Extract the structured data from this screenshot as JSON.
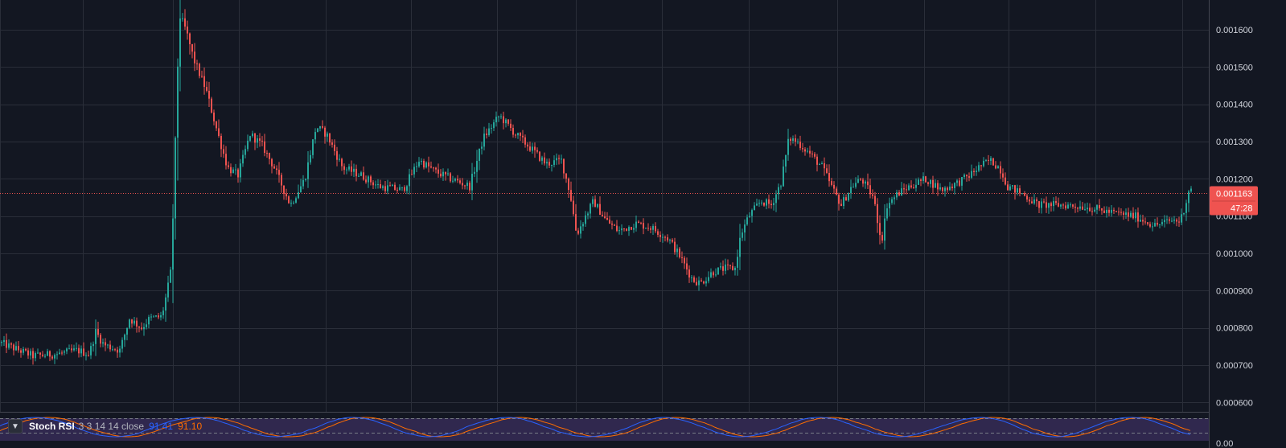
{
  "colors": {
    "background": "#131722",
    "grid": "#2a2e39",
    "up": "#26a69a",
    "down": "#ef5350",
    "price_line": "#ef5350",
    "k_line": "#2962ff",
    "d_line": "#ff6d00",
    "rsi_band": "#7e57c2"
  },
  "price_axis": {
    "ticks": [
      "0.001600",
      "0.001500",
      "0.001400",
      "0.001300",
      "0.001200",
      "0.001100",
      "0.001000",
      "0.000900",
      "0.000800",
      "0.000700",
      "0.000600"
    ],
    "current_price": "0.001163",
    "countdown": "47:28"
  },
  "stoch_rsi": {
    "name": "Stoch RSI",
    "params": "3 3 14 14 close",
    "k_value": "91.41",
    "d_value": "91.10",
    "axis_zero": "0.00"
  },
  "chart_data": {
    "type": "candlestick",
    "ylim": [
      0.000575,
      0.00168
    ],
    "current_price": 0.001163,
    "grid": true,
    "price_path": [
      [
        0,
        0.00076
      ],
      [
        40,
        0.000725
      ],
      [
        70,
        0.00073
      ],
      [
        95,
        0.00074
      ],
      [
        110,
        0.00073
      ],
      [
        118,
        0.00079
      ],
      [
        128,
        0.000755
      ],
      [
        148,
        0.00074
      ],
      [
        160,
        0.000825
      ],
      [
        175,
        0.0008
      ],
      [
        185,
        0.000825
      ],
      [
        200,
        0.00083
      ],
      [
        207,
        0.0009
      ],
      [
        212,
        0.00096
      ],
      [
        217,
        0.0013
      ],
      [
        222,
        0.00164
      ],
      [
        230,
        0.0016
      ],
      [
        240,
        0.00152
      ],
      [
        255,
        0.00144
      ],
      [
        270,
        0.00132
      ],
      [
        282,
        0.00123
      ],
      [
        295,
        0.00121
      ],
      [
        310,
        0.00132
      ],
      [
        325,
        0.00129
      ],
      [
        340,
        0.00123
      ],
      [
        360,
        0.00113
      ],
      [
        378,
        0.0012
      ],
      [
        392,
        0.00134
      ],
      [
        405,
        0.00132
      ],
      [
        425,
        0.00123
      ],
      [
        448,
        0.00121
      ],
      [
        470,
        0.00118
      ],
      [
        500,
        0.00117
      ],
      [
        520,
        0.00125
      ],
      [
        540,
        0.00122
      ],
      [
        560,
        0.0012
      ],
      [
        583,
        0.00118
      ],
      [
        600,
        0.00131
      ],
      [
        620,
        0.00137
      ],
      [
        640,
        0.00132
      ],
      [
        660,
        0.00128
      ],
      [
        678,
        0.00124
      ],
      [
        697,
        0.00125
      ],
      [
        708,
        0.00116
      ],
      [
        716,
        0.00105
      ],
      [
        727,
        0.0011
      ],
      [
        737,
        0.00114
      ],
      [
        752,
        0.00109
      ],
      [
        768,
        0.00106
      ],
      [
        790,
        0.00108
      ],
      [
        808,
        0.00107
      ],
      [
        830,
        0.00104
      ],
      [
        845,
        0.00099
      ],
      [
        860,
        0.00093
      ],
      [
        870,
        0.00092
      ],
      [
        885,
        0.00095
      ],
      [
        900,
        0.00096
      ],
      [
        913,
        0.00096
      ],
      [
        920,
        0.00105
      ],
      [
        930,
        0.0011
      ],
      [
        945,
        0.00114
      ],
      [
        958,
        0.00113
      ],
      [
        970,
        0.00119
      ],
      [
        980,
        0.00131
      ],
      [
        990,
        0.0013
      ],
      [
        1005,
        0.00127
      ],
      [
        1022,
        0.00123
      ],
      [
        1035,
        0.00117
      ],
      [
        1045,
        0.00113
      ],
      [
        1058,
        0.00118
      ],
      [
        1070,
        0.0012
      ],
      [
        1085,
        0.00115
      ],
      [
        1095,
        0.00103
      ],
      [
        1102,
        0.00113
      ],
      [
        1115,
        0.00116
      ],
      [
        1130,
        0.00118
      ],
      [
        1150,
        0.0012
      ],
      [
        1170,
        0.00117
      ],
      [
        1190,
        0.00119
      ],
      [
        1205,
        0.00121
      ],
      [
        1215,
        0.00123
      ],
      [
        1230,
        0.00125
      ],
      [
        1242,
        0.00123
      ],
      [
        1252,
        0.00118
      ],
      [
        1270,
        0.00116
      ],
      [
        1290,
        0.00113
      ],
      [
        1320,
        0.00113
      ],
      [
        1350,
        0.001125
      ],
      [
        1380,
        0.00111
      ],
      [
        1410,
        0.0011
      ],
      [
        1435,
        0.001075
      ],
      [
        1458,
        0.00109
      ],
      [
        1466,
        0.001085
      ],
      [
        1474,
        0.00114
      ],
      [
        1478,
        0.00118
      ],
      [
        1482,
        0.001163
      ]
    ]
  }
}
